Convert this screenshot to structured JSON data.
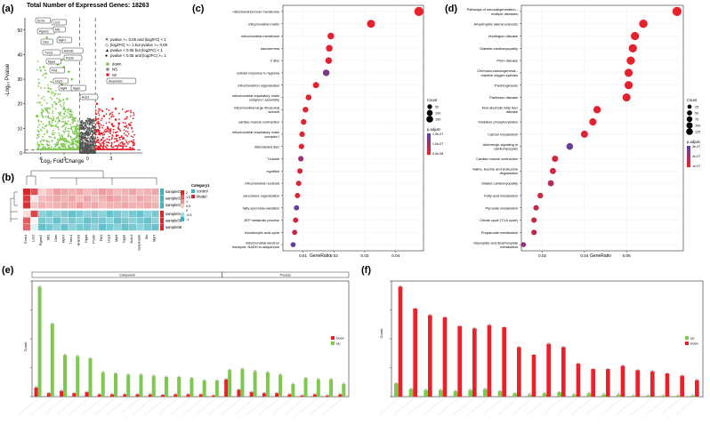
{
  "figure": {
    "panel_labels": [
      "(a)",
      "(b)",
      "(c)",
      "(d)",
      "(e)",
      "(f)"
    ],
    "colors": {
      "down": "#7ec850",
      "ns": "#888888",
      "up": "#e8212b",
      "dot_low": "#e8212b",
      "dot_high": "#5a3fa8",
      "heat_low": "#3fb2c0",
      "heat_high": "#d8262c",
      "bar_red": "#e8212b",
      "bar_green": "#7ec850"
    }
  },
  "chart_data": [
    {
      "id": "a",
      "type": "scatter",
      "title": "Total Number of Expressed Genes: 18263",
      "xlabel": "Log₂ Fold Change",
      "ylabel": "-Log₁₀ Pvalue",
      "xlim": [
        -8,
        7
      ],
      "ylim": [
        0,
        55
      ],
      "xticks": [
        -6,
        -3,
        0,
        3
      ],
      "yticks": [
        0,
        10,
        20,
        30,
        40,
        50
      ],
      "threshold_x": [
        -1,
        1
      ],
      "threshold_y": 1.3,
      "legend_shapes": [
        "pvalue >= 0.05 and |log2FC| < 1",
        "|log2FC| >= 1 but pvalue >= 0.05",
        "pvalue < 0.05 but |log2FC| < 1",
        "pvalue < 0.05 and |log2FC| >= 1"
      ],
      "legend_colors": [
        "down",
        "NS",
        "up"
      ],
      "series": [
        {
          "name": "down",
          "points": [
            [
              -6.1,
              50
            ],
            [
              -4.5,
              50
            ],
            [
              -5.2,
              47
            ],
            [
              -3.6,
              47
            ],
            [
              -2.5,
              42
            ],
            [
              -4.8,
              40
            ],
            [
              -3.2,
              38
            ],
            [
              -3.8,
              36
            ],
            [
              -5.6,
              35
            ],
            [
              -3.0,
              35
            ],
            [
              -2.4,
              33
            ],
            [
              -4.2,
              33
            ],
            [
              -2.0,
              30
            ],
            [
              -3.3,
              28
            ],
            [
              -5.0,
              25
            ],
            [
              -2.6,
              22
            ],
            [
              -4.0,
              20
            ],
            [
              -3.0,
              18
            ],
            [
              -2.2,
              17
            ],
            [
              -6.5,
              15
            ],
            [
              -1.8,
              14
            ],
            [
              -3.6,
              13
            ],
            [
              -2.8,
              12
            ],
            [
              -4.6,
              11
            ],
            [
              -1.5,
              10
            ]
          ]
        },
        {
          "name": "NS",
          "points": [
            [
              -0.5,
              3
            ],
            [
              0.2,
              4
            ],
            [
              0.6,
              2
            ],
            [
              -0.8,
              1
            ],
            [
              0.3,
              6
            ]
          ]
        },
        {
          "name": "up",
          "points": [
            [
              1.4,
              12
            ],
            [
              2.1,
              15
            ],
            [
              3.2,
              22
            ],
            [
              2.6,
              10
            ],
            [
              1.8,
              8
            ],
            [
              4.0,
              12
            ],
            [
              3.6,
              18
            ],
            [
              4.6,
              6
            ],
            [
              1.2,
              20
            ],
            [
              2.9,
              9
            ]
          ]
        }
      ],
      "labels": [
        "Ecm1",
        "Lcn2",
        "Pgam2",
        "Mt1",
        "Ckm",
        "Myh7",
        "Tnnc1",
        "Ankrd1",
        "Nppa",
        "Postn",
        "Fhl1",
        "Ucp3",
        "Myl4",
        "Nppb",
        "Actc1",
        "Serpina3n"
      ]
    },
    {
      "id": "b",
      "type": "heatmap",
      "rows": [
        "sample01",
        "sample02",
        "sample03",
        "sample04",
        "sample05",
        "sample06"
      ],
      "columns": [
        "Ecm1",
        "Lcn2",
        "Pgam2",
        "Mt1",
        "Ckm",
        "Myh7",
        "Tnnc1",
        "Ankrd1",
        "Nppa",
        "Postn",
        "Fhl1",
        "Ucp3",
        "Myl4",
        "Nppb",
        "Actc1",
        "Serpina3n",
        "Sln",
        "Myl7"
      ],
      "category_title": "Category1",
      "category_values": [
        "control",
        "Model"
      ],
      "scale": [
        -1,
        -0.5,
        0,
        0.5,
        1,
        1.5,
        2
      ],
      "values": [
        [
          2.0,
          1.6,
          0.4,
          0.6,
          0.9,
          0.8,
          0.7,
          0.8,
          0.6,
          0.7,
          0.9,
          0.8,
          0.6,
          0.7,
          0.8,
          0.6,
          0.7,
          0.8
        ],
        [
          1.8,
          0.2,
          0.6,
          0.7,
          0.8,
          0.7,
          0.8,
          0.6,
          0.8,
          0.6,
          0.7,
          0.9,
          0.8,
          0.7,
          0.6,
          0.8,
          0.7,
          0.6
        ],
        [
          1.9,
          0.5,
          0.7,
          0.6,
          0.7,
          0.8,
          0.7,
          0.9,
          0.7,
          0.8,
          0.6,
          0.7,
          0.7,
          0.8,
          0.7,
          0.7,
          0.8,
          0.7
        ],
        [
          0.3,
          1.7,
          -0.6,
          -0.7,
          -0.6,
          -0.7,
          -0.8,
          -0.7,
          -0.6,
          -0.7,
          -0.6,
          -0.8,
          -0.7,
          -0.6,
          -0.7,
          -0.8,
          -0.6,
          -0.7
        ],
        [
          1.5,
          0.1,
          -0.7,
          -0.6,
          -0.8,
          -0.6,
          -0.7,
          -0.6,
          -0.8,
          -0.7,
          -0.7,
          -0.6,
          -0.8,
          -0.7,
          -0.6,
          -0.7,
          -0.8,
          -0.6
        ],
        [
          1.4,
          -0.2,
          -0.8,
          -0.7,
          -0.6,
          -0.8,
          -0.6,
          -0.7,
          -0.7,
          -0.6,
          -0.8,
          -0.7,
          -0.6,
          -0.8,
          -0.7,
          -0.6,
          -0.7,
          -0.8
        ]
      ],
      "row_category": [
        "control",
        "control",
        "control",
        "Model",
        "Model",
        "Model"
      ]
    },
    {
      "id": "c",
      "type": "scatter",
      "subtype": "dotplot",
      "xlabel": "GeneRatio",
      "xlim": [
        0.0035,
        0.049
      ],
      "xticks": [
        0.01,
        0.02,
        0.03,
        0.04
      ],
      "categories": [
        "mitochondrial inner membrane",
        "mitochondrial matrix",
        "mitochondrial membrane",
        "sarcolemma",
        "Z disc",
        "cellular response to hypoxia",
        "mitochondrion organization",
        "mitochondrial respiratory chain complex I assembly",
        "mitochondrial large ribosomal subunit",
        "cardiac muscle contraction",
        "mitochondrial respiratory chain complex I",
        "intercalated disc",
        "T-tubule",
        "myofibril",
        "mitochondrial nucleoid",
        "sarcomere organization",
        "fatty acid beta-oxidation",
        "ATP metabolic process",
        "tricarboxylic acid cycle",
        "mitochondrial electron transport, NADH to ubiquinone"
      ],
      "gene_ratio": [
        0.0475,
        0.032,
        0.019,
        0.0185,
        0.0183,
        0.0175,
        0.0142,
        0.0118,
        0.0108,
        0.0102,
        0.0097,
        0.0095,
        0.0093,
        0.009,
        0.0086,
        0.0082,
        0.0079,
        0.0076,
        0.0073,
        0.0068
      ],
      "count": [
        150,
        105,
        60,
        58,
        57,
        55,
        45,
        37,
        34,
        32,
        30,
        30,
        29,
        28,
        27,
        26,
        25,
        24,
        23,
        21
      ],
      "p_adjust_rel": [
        0.0,
        0.02,
        0.05,
        0.05,
        0.08,
        0.75,
        0.05,
        0.05,
        0.1,
        0.05,
        0.1,
        0.1,
        0.55,
        0.1,
        0.1,
        0.1,
        0.9,
        0.15,
        0.2,
        0.95
      ],
      "size_legend_title": "Count",
      "size_legend": [
        "50",
        "100",
        "150"
      ],
      "color_legend_title": "p.adjust",
      "color_legend": [
        "1.5e-07",
        "1.0e-07",
        "5.0e-08"
      ]
    },
    {
      "id": "d",
      "type": "scatter",
      "subtype": "dotplot",
      "xlabel": "GeneRatio",
      "xlim": [
        0.01,
        0.087
      ],
      "xticks": [
        0.02,
        0.04,
        0.06
      ],
      "categories": [
        "Pathways of neurodegeneration - multiple diseases",
        "Amyotrophic lateral sclerosis",
        "Huntington disease",
        "Diabetic cardiomyopathy",
        "Prion disease",
        "Chemical carcinogenesis - reactive oxygen species",
        "Thermogenesis",
        "Parkinson disease",
        "Non-alcoholic fatty liver disease",
        "Oxidative phosphorylation",
        "Carbon metabolism",
        "Adrenergic signaling in cardiomyocytes",
        "Cardiac muscle contraction",
        "Valine, leucine and isoleucine degradation",
        "Dilated cardiomyopathy",
        "Fatty acid metabolism",
        "Pyruvate metabolism",
        "Citrate cycle (TCA cycle)",
        "Propanoate metabolism",
        "Glyoxylate and dicarboxylate metabolism"
      ],
      "gene_ratio": [
        0.084,
        0.068,
        0.064,
        0.063,
        0.062,
        0.061,
        0.061,
        0.06,
        0.046,
        0.044,
        0.04,
        0.033,
        0.026,
        0.025,
        0.024,
        0.019,
        0.017,
        0.016,
        0.016,
        0.011
      ],
      "count": [
        125,
        102,
        96,
        95,
        93,
        92,
        92,
        90,
        70,
        66,
        60,
        50,
        39,
        37,
        36,
        28,
        25,
        24,
        24,
        17
      ],
      "p_adjust_rel": [
        0.0,
        0.02,
        0.02,
        0.03,
        0.02,
        0.03,
        0.03,
        0.05,
        0.05,
        0.05,
        0.08,
        0.85,
        0.15,
        0.15,
        0.35,
        0.2,
        0.25,
        0.25,
        0.3,
        0.6
      ],
      "size_legend_title": "Count",
      "size_legend": [
        "25",
        "50",
        "75",
        "100",
        "125"
      ],
      "color_legend_title": "p.adjust",
      "color_legend": [
        "3e-07",
        "2e-07",
        "1e-07"
      ]
    },
    {
      "id": "e",
      "type": "bar",
      "ylabel": "Count",
      "facets": [
        "Component",
        "Process"
      ],
      "series": [
        {
          "name": "Down",
          "values": [
            8,
            3,
            5,
            3,
            4,
            2,
            2,
            2,
            2,
            2,
            1.5,
            2,
            2,
            2,
            1,
            15,
            6,
            4,
            3,
            3,
            2,
            1,
            2,
            1,
            2
          ]
        },
        {
          "name": "Up",
          "values": [
            95,
            63,
            36,
            35,
            33,
            21,
            20,
            19,
            19,
            18,
            17,
            17,
            16,
            14,
            14,
            23,
            24,
            22,
            21,
            19,
            11,
            16,
            15,
            15,
            11
          ]
        }
      ],
      "categories_count": 25
    },
    {
      "id": "f",
      "type": "bar",
      "ylabel": "Count",
      "series": [
        {
          "name": "Up",
          "values": [
            12,
            7,
            6,
            6,
            5,
            6,
            7,
            5,
            3,
            2,
            3,
            4,
            2,
            3,
            2,
            2,
            1,
            1,
            1,
            1,
            1
          ]
        },
        {
          "name": "Down",
          "values": [
            100,
            80,
            74,
            72,
            64,
            62,
            65,
            63,
            45,
            38,
            48,
            45,
            30,
            25,
            25,
            28,
            24,
            23,
            21,
            19,
            15
          ]
        }
      ],
      "categories_count": 21
    }
  ]
}
